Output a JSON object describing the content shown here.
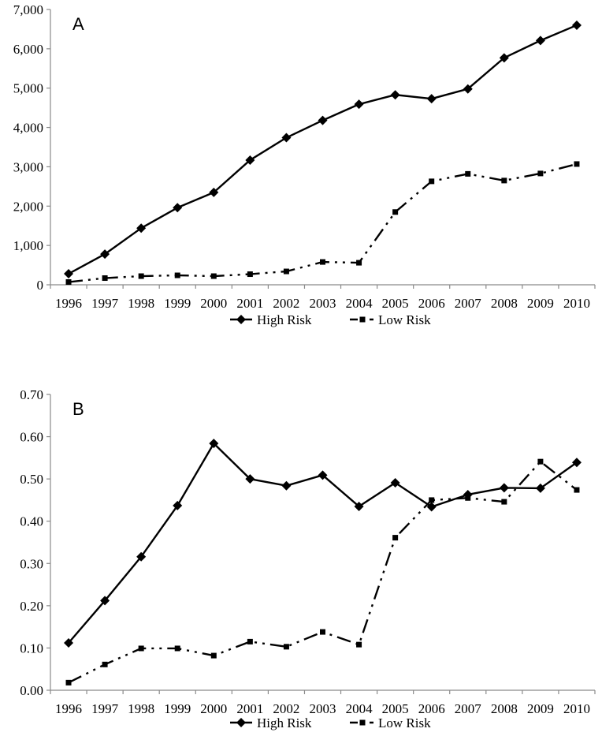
{
  "chart_data": [
    {
      "type": "line",
      "panel_label": "A",
      "title": "",
      "xlabel": "",
      "ylabel": "",
      "categories": [
        "1996",
        "1997",
        "1998",
        "1999",
        "2000",
        "2001",
        "2002",
        "2003",
        "2004",
        "2005",
        "2006",
        "2007",
        "2008",
        "2009",
        "2010"
      ],
      "ylim": [
        0,
        7000
      ],
      "yticks": [
        0,
        1000,
        2000,
        3000,
        4000,
        5000,
        6000,
        7000
      ],
      "ytick_labels": [
        "0",
        "1,000",
        "2,000",
        "3,000",
        "4,000",
        "5,000",
        "6,000",
        "7,000"
      ],
      "grid": false,
      "legend_position": "bottom",
      "series": [
        {
          "name": "High Risk",
          "marker": "diamond",
          "line": "solid",
          "values": [
            280,
            780,
            1440,
            1960,
            2350,
            3170,
            3740,
            4180,
            4590,
            4830,
            4730,
            4980,
            5770,
            6210,
            6600
          ]
        },
        {
          "name": "Low Risk",
          "marker": "square",
          "line": "dash-dot-dot",
          "values": [
            70,
            170,
            220,
            240,
            220,
            270,
            340,
            580,
            560,
            1850,
            2630,
            2820,
            2650,
            2830,
            3070
          ]
        }
      ]
    },
    {
      "type": "line",
      "panel_label": "B",
      "title": "",
      "xlabel": "",
      "ylabel": "",
      "categories": [
        "1996",
        "1997",
        "1998",
        "1999",
        "2000",
        "2001",
        "2002",
        "2003",
        "2004",
        "2005",
        "2006",
        "2007",
        "2008",
        "2009",
        "2010"
      ],
      "ylim": [
        0,
        0.7
      ],
      "yticks": [
        0,
        0.1,
        0.2,
        0.3,
        0.4,
        0.5,
        0.6,
        0.7
      ],
      "ytick_labels": [
        "0.00",
        "0.10",
        "0.20",
        "0.30",
        "0.40",
        "0.50",
        "0.60",
        "0.70"
      ],
      "grid": false,
      "legend_position": "bottom",
      "series": [
        {
          "name": "High Risk",
          "marker": "diamond",
          "line": "solid",
          "values": [
            0.112,
            0.212,
            0.316,
            0.437,
            0.584,
            0.5,
            0.484,
            0.509,
            0.435,
            0.491,
            0.434,
            0.463,
            0.479,
            0.478,
            0.539
          ]
        },
        {
          "name": "Low Risk",
          "marker": "square",
          "line": "dash-dot-dot",
          "values": [
            0.018,
            0.061,
            0.099,
            0.099,
            0.082,
            0.115,
            0.103,
            0.138,
            0.108,
            0.361,
            0.45,
            0.455,
            0.446,
            0.541,
            0.474
          ]
        }
      ]
    }
  ]
}
